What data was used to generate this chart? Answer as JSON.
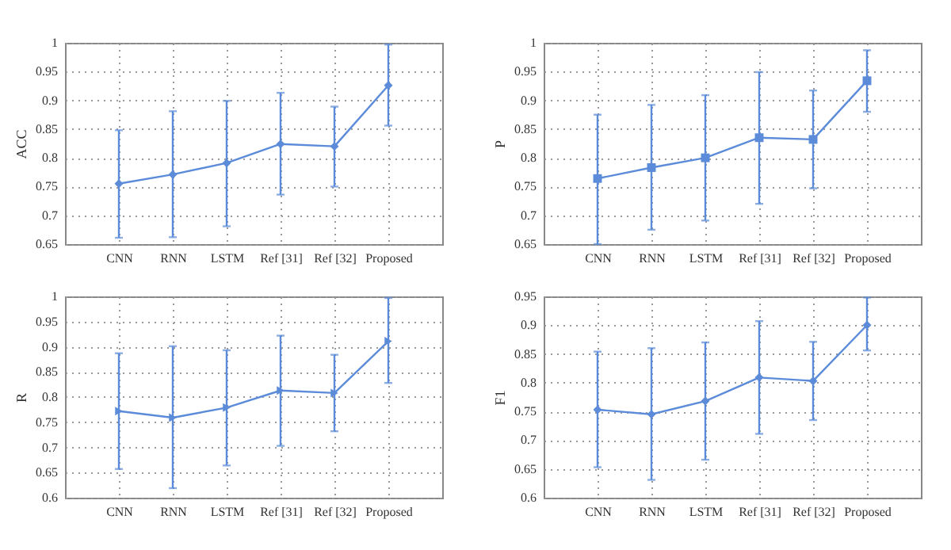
{
  "chart_data": [
    {
      "type": "line",
      "ylabel": "ACC",
      "categories": [
        "CNN",
        "RNN",
        "LSTM",
        "Ref [31]",
        "Ref [32]",
        "Proposed"
      ],
      "series": [
        {
          "color": "#5b8bd9",
          "values": [
            0.755,
            0.771,
            0.791,
            0.824,
            0.82,
            0.926
          ],
          "errors": [
            [
              0.661,
              0.848
            ],
            [
              0.662,
              0.881
            ],
            [
              0.681,
              0.899
            ],
            [
              0.736,
              0.913
            ],
            [
              0.75,
              0.889
            ],
            [
              0.856,
              0.997
            ]
          ]
        }
      ],
      "ylim": [
        0.65,
        1
      ],
      "yticks": [
        0.65,
        0.7,
        0.75,
        0.8,
        0.85,
        0.9,
        0.95,
        1
      ],
      "grid": true,
      "marker": "diamond"
    },
    {
      "type": "line",
      "ylabel": "P",
      "categories": [
        "CNN",
        "RNN",
        "LSTM",
        "Ref [31]",
        "Ref [32]",
        "Proposed"
      ],
      "series": [
        {
          "color": "#5b8bd9",
          "values": [
            0.764,
            0.783,
            0.8,
            0.835,
            0.832,
            0.934
          ],
          "errors": [
            [
              0.65,
              0.875
            ],
            [
              0.675,
              0.892
            ],
            [
              0.691,
              0.909
            ],
            [
              0.72,
              0.949
            ],
            [
              0.747,
              0.917
            ],
            [
              0.88,
              0.987
            ]
          ]
        }
      ],
      "ylim": [
        0.65,
        1
      ],
      "yticks": [
        0.65,
        0.7,
        0.75,
        0.8,
        0.85,
        0.9,
        0.95,
        1
      ],
      "grid": true,
      "marker": "square"
    },
    {
      "type": "line",
      "ylabel": "R",
      "categories": [
        "CNN",
        "RNN",
        "LSTM",
        "Ref [31]",
        "Ref [32]",
        "Proposed"
      ],
      "series": [
        {
          "color": "#5b8bd9",
          "values": [
            0.772,
            0.759,
            0.779,
            0.813,
            0.808,
            0.911
          ],
          "errors": [
            [
              0.657,
              0.887
            ],
            [
              0.619,
              0.901
            ],
            [
              0.664,
              0.893
            ],
            [
              0.703,
              0.922
            ],
            [
              0.732,
              0.884
            ],
            [
              0.828,
              0.997
            ]
          ]
        }
      ],
      "ylim": [
        0.6,
        1
      ],
      "yticks": [
        0.6,
        0.65,
        0.7,
        0.75,
        0.8,
        0.85,
        0.9,
        0.95,
        1
      ],
      "grid": true,
      "marker": "triangle"
    },
    {
      "type": "line",
      "ylabel": "F1",
      "categories": [
        "CNN",
        "RNN",
        "LSTM",
        "Ref [31]",
        "Ref [32]",
        "Proposed"
      ],
      "series": [
        {
          "color": "#5b8bd9",
          "values": [
            0.753,
            0.745,
            0.768,
            0.809,
            0.803,
            0.9
          ],
          "errors": [
            [
              0.653,
              0.854
            ],
            [
              0.631,
              0.86
            ],
            [
              0.666,
              0.87
            ],
            [
              0.711,
              0.907
            ],
            [
              0.735,
              0.871
            ],
            [
              0.856,
              0.948
            ]
          ]
        }
      ],
      "ylim": [
        0.6,
        0.95
      ],
      "yticks": [
        0.6,
        0.65,
        0.7,
        0.75,
        0.8,
        0.85,
        0.9,
        0.95
      ],
      "grid": true,
      "marker": "diamond"
    }
  ]
}
